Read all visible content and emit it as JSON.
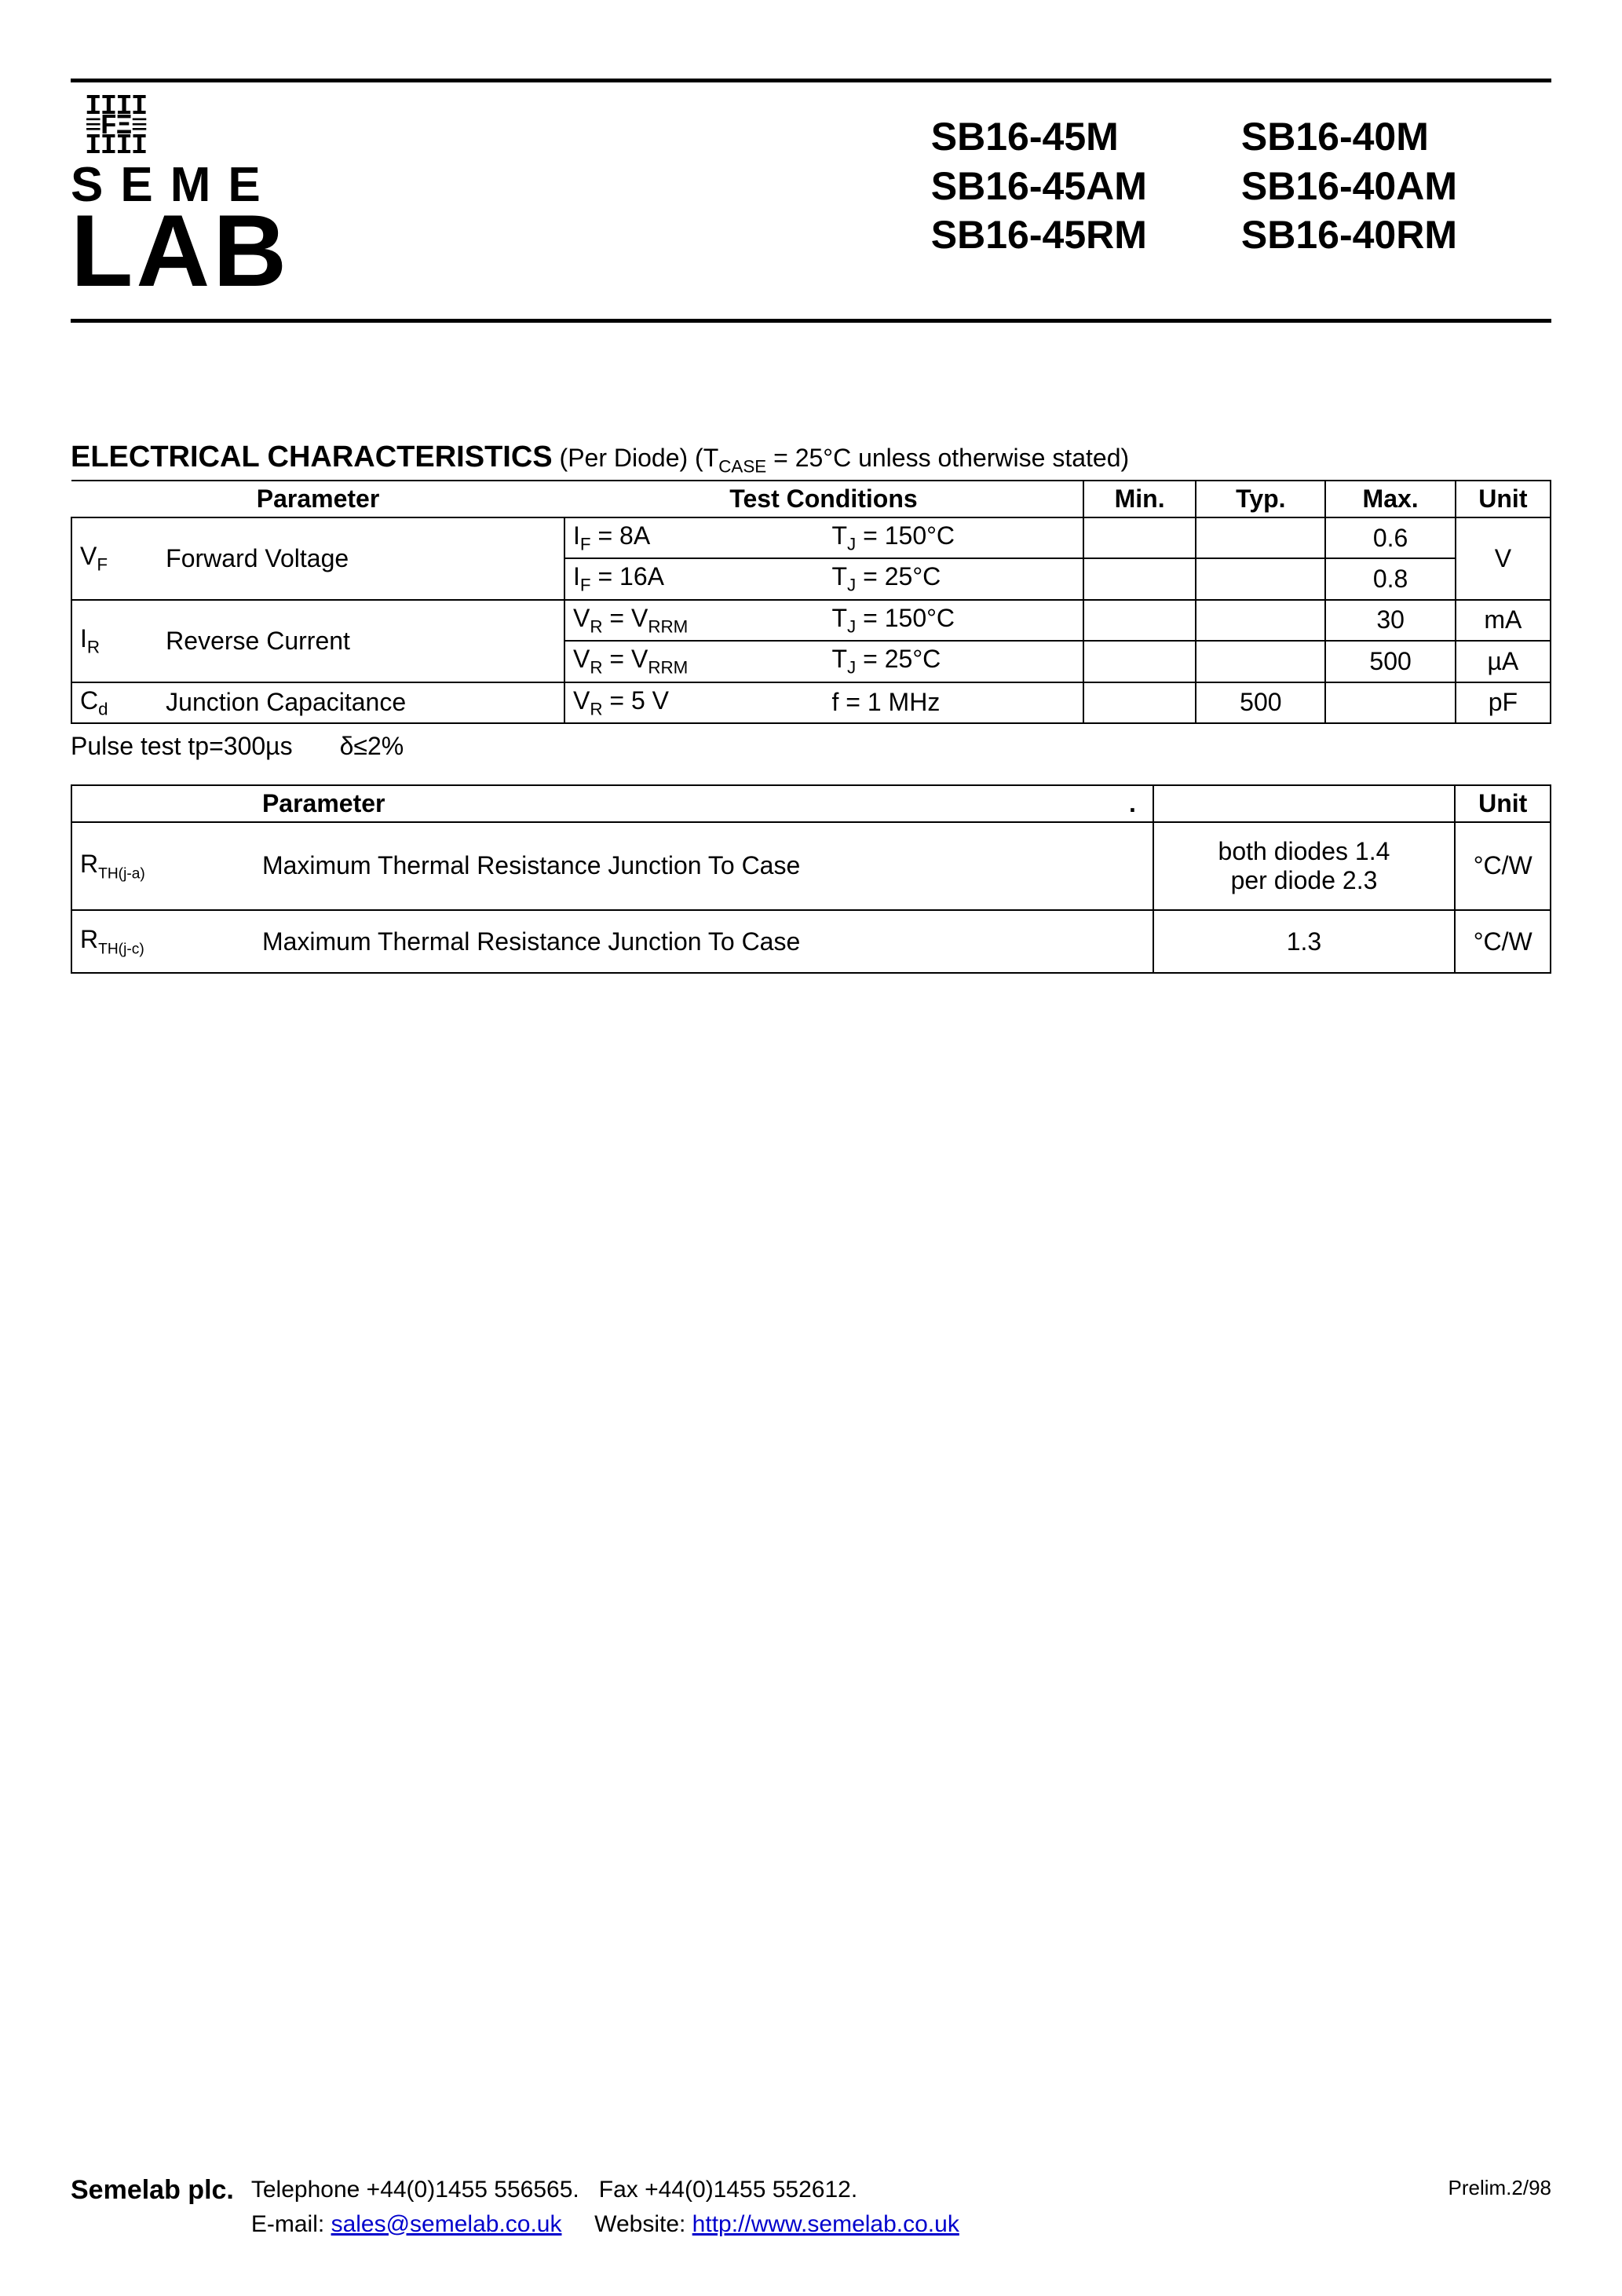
{
  "logo": {
    "glyph_lines": [
      "IIII",
      "≡FΞ≡",
      "IIII"
    ],
    "line1": "SEME",
    "line2": "LAB"
  },
  "part_numbers": {
    "col1": [
      "SB16-45M",
      "SB16-45AM",
      "SB16-45RM"
    ],
    "col2": [
      "SB16-40M",
      "SB16-40AM",
      "SB16-40RM"
    ]
  },
  "section1": {
    "title_bold": "ELECTRICAL CHARACTERISTICS",
    "title_rest": " (Per Diode) (T",
    "title_sub": "CASE",
    "title_after": " = 25°C unless otherwise stated)"
  },
  "tbl1_head": {
    "param": "Parameter",
    "cond": "Test Conditions",
    "min": "Min.",
    "typ": "Typ.",
    "max": "Max.",
    "unit": "Unit"
  },
  "tbl1_rows": [
    {
      "sym_main": "V",
      "sym_sub": "F",
      "name": "Forward Voltage",
      "rowspan": 2,
      "cond1_pre": "I",
      "cond1_sub": "F",
      "cond1_post": " = 8A",
      "cond2_pre": "T",
      "cond2_sub": "J",
      "cond2_post": " = 150°C",
      "min": "",
      "typ": "",
      "max": "0.6",
      "unit": "V",
      "unit_rowspan": 2
    },
    {
      "cond1_pre": "I",
      "cond1_sub": "F",
      "cond1_post": " = 16A",
      "cond2_pre": "T",
      "cond2_sub": "J",
      "cond2_post": " = 25°C",
      "min": "",
      "typ": "",
      "max": "0.8"
    },
    {
      "sym_main": "I",
      "sym_sub": "R",
      "name": "Reverse Current",
      "rowspan": 2,
      "cond1_pre": "V",
      "cond1_sub": "R",
      "cond1_post": " = V",
      "cond1_sub2": "RRM",
      "cond2_pre": "T",
      "cond2_sub": "J",
      "cond2_post": " = 150°C",
      "min": "",
      "typ": "",
      "max": "30",
      "unit": "mA"
    },
    {
      "cond1_pre": "V",
      "cond1_sub": "R",
      "cond1_post": " = V",
      "cond1_sub2": "RRM",
      "cond2_pre": "T",
      "cond2_sub": "J",
      "cond2_post": " = 25°C",
      "min": "",
      "typ": "",
      "max": "500",
      "unit": "µA"
    },
    {
      "sym_main": "C",
      "sym_sub": "d",
      "name": "Junction Capacitance",
      "rowspan": 1,
      "cond1_pre": "V",
      "cond1_sub": "R",
      "cond1_post": " = 5 V",
      "cond2_plain": "f = 1 MHz",
      "min": "",
      "typ": "500",
      "max": "",
      "unit": "pF"
    }
  ],
  "note": {
    "a": "Pulse test tp=300µs",
    "b": "δ≤2%"
  },
  "tbl2_head": {
    "param": "Parameter",
    "dot": ".",
    "blank": "",
    "unit": "Unit"
  },
  "tbl2_rows": [
    {
      "sym_main": "R",
      "sym_sub": "TH(j-a)",
      "name": "Maximum Thermal Resistance Junction To Case",
      "val_line1": "both diodes 1.4",
      "val_line2": "per diode 2.3",
      "unit": "°C/W"
    },
    {
      "sym_main": "R",
      "sym_sub": "TH(j-c)",
      "name": "Maximum Thermal Resistance Junction To Case",
      "val_line1": "1.3",
      "unit": "°C/W"
    }
  ],
  "footer": {
    "company": "Semelab plc.",
    "tel_label": "Telephone ",
    "tel": "+44(0)1455 556565.",
    "fax_label": "Fax ",
    "fax": "+44(0)1455 552612.",
    "email_label": "E-mail: ",
    "email": "sales@semelab.co.uk",
    "web_label": "Website: ",
    "web": "http://www.semelab.co.uk",
    "rev": "Prelim.2/98"
  }
}
